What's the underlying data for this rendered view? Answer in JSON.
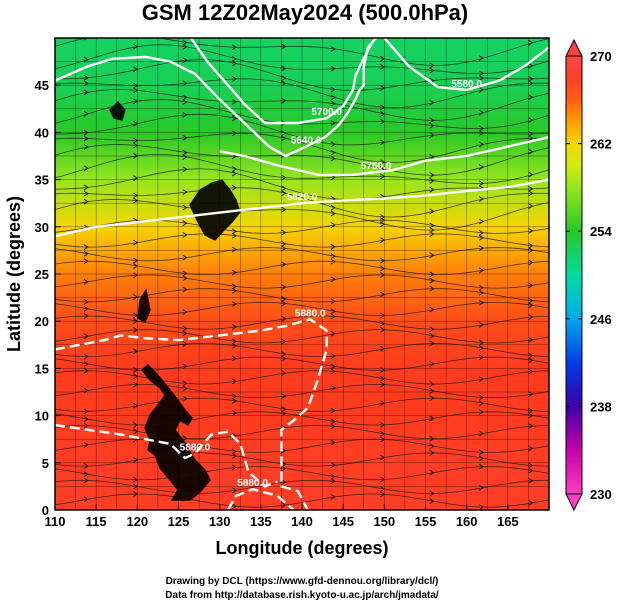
{
  "chart_data": {
    "type": "heatmap",
    "title": "GSM 12Z02May2024 (500.0hPa)",
    "xlabel": "Longitude (degrees)",
    "ylabel": "Latitude  (degrees)",
    "xlim": [
      110,
      170
    ],
    "ylim": [
      0,
      50
    ],
    "x_ticks": [
      110,
      115,
      120,
      125,
      130,
      135,
      140,
      145,
      150,
      155,
      160,
      165
    ],
    "y_ticks": [
      0,
      5,
      10,
      15,
      20,
      25,
      30,
      35,
      40,
      45
    ],
    "grid": true,
    "colorbar": {
      "ticks": [
        230,
        238,
        246,
        254,
        262,
        270
      ],
      "range": [
        230,
        270
      ],
      "orientation": "vertical",
      "position": "right"
    },
    "temperature_by_latitude": {
      "lat": [
        0,
        5,
        10,
        15,
        20,
        25,
        30,
        35,
        40,
        45,
        50
      ],
      "value": [
        267.5,
        267.5,
        267,
        267,
        266.5,
        265,
        262,
        258,
        254,
        252.5,
        252
      ]
    },
    "contours": [
      {
        "label": "5880.0",
        "points": [
          [
            110,
            17
          ],
          [
            113,
            17.5
          ],
          [
            116,
            18
          ],
          [
            118,
            18.5
          ],
          [
            121,
            18.2
          ],
          [
            125,
            18
          ],
          [
            130,
            18.5
          ],
          [
            135,
            19
          ],
          [
            138,
            19.5
          ],
          [
            141,
            20.2
          ],
          [
            143,
            19
          ],
          [
            143,
            17
          ],
          [
            141.8,
            13.5
          ],
          [
            140.7,
            10.8
          ],
          [
            139,
            9.5
          ],
          [
            137.5,
            8.5
          ],
          [
            137.5,
            2.5
          ],
          [
            139.5,
            2
          ],
          [
            140.7,
            0
          ]
        ]
      },
      {
        "label": "5880.0",
        "points": [
          [
            110,
            9
          ],
          [
            114,
            8.5
          ],
          [
            118,
            8
          ],
          [
            121,
            7.5
          ],
          [
            124,
            7
          ],
          [
            125.8,
            5.5
          ],
          [
            127,
            6
          ],
          [
            129,
            8
          ],
          [
            131,
            8.3
          ],
          [
            132.5,
            7
          ],
          [
            133.5,
            4
          ],
          [
            135.5,
            2.5
          ],
          [
            137,
            3
          ]
        ]
      },
      {
        "label": "5880.0",
        "points": [
          [
            131,
            0
          ],
          [
            132,
            1.5
          ],
          [
            134,
            2.2
          ],
          [
            137,
            1.5
          ],
          [
            139,
            0
          ]
        ]
      },
      {
        "label": "5820.0",
        "points": [
          [
            110,
            29
          ],
          [
            115,
            30
          ],
          [
            120,
            30.5
          ],
          [
            125,
            31
          ],
          [
            130,
            31.5
          ],
          [
            135,
            32
          ],
          [
            140,
            32.5
          ],
          [
            145,
            32.8
          ],
          [
            150,
            33
          ],
          [
            155,
            33.3
          ],
          [
            160,
            33.8
          ],
          [
            165,
            34.2
          ],
          [
            170,
            35
          ]
        ]
      },
      {
        "label": "5760.0",
        "points": [
          [
            130,
            38
          ],
          [
            133,
            37.5
          ],
          [
            137,
            36.5
          ],
          [
            142,
            35.5
          ],
          [
            146,
            35.5
          ],
          [
            149,
            35.8
          ],
          [
            151,
            36
          ],
          [
            155,
            37
          ],
          [
            160,
            37.5
          ],
          [
            165,
            38.5
          ],
          [
            170,
            39.5
          ]
        ]
      },
      {
        "label": "5640.0",
        "points": [
          [
            110,
            45.5
          ],
          [
            114,
            47
          ],
          [
            117,
            47.8
          ],
          [
            121,
            48
          ],
          [
            124,
            47.5
          ],
          [
            127,
            46.2
          ],
          [
            130,
            43.5
          ],
          [
            133,
            41
          ],
          [
            136,
            38.5
          ],
          [
            138,
            37.5
          ],
          [
            140.5,
            38.5
          ],
          [
            142.8,
            39.5
          ],
          [
            144.5,
            40.8
          ],
          [
            145.5,
            42
          ],
          [
            146.5,
            43.5
          ],
          [
            147,
            44.5
          ],
          [
            147.5,
            45
          ],
          [
            147.5,
            47
          ],
          [
            148,
            49
          ],
          [
            149,
            50
          ]
        ]
      },
      {
        "label": "5700.0",
        "points": [
          [
            126.5,
            50
          ],
          [
            128.5,
            47.5
          ],
          [
            131,
            45
          ],
          [
            133,
            43
          ],
          [
            135.5,
            41
          ],
          [
            139.5,
            41
          ],
          [
            143,
            41.5
          ],
          [
            145,
            42.8
          ],
          [
            146.2,
            44.5
          ],
          [
            146.5,
            46
          ],
          [
            147.3,
            47.5
          ],
          [
            148.5,
            49.5
          ]
        ]
      },
      {
        "label": "5580.0",
        "points": [
          [
            150,
            50
          ],
          [
            153,
            47
          ],
          [
            156.5,
            44.8
          ],
          [
            160,
            44.5
          ],
          [
            164,
            45.5
          ],
          [
            167,
            47
          ],
          [
            170,
            49
          ]
        ]
      }
    ],
    "annotations": [
      "5880.0",
      "5880.0",
      "5820.0",
      "5760.0",
      "5700.0",
      "5640.0",
      "5580.0"
    ]
  },
  "credits": {
    "line1": "Drawing by DCL (https://www.gfd-dennou.org/library/dcl/)",
    "line2": "Data from http://database.rish.kyoto-u.ac.jp/arch/jmadata/"
  }
}
